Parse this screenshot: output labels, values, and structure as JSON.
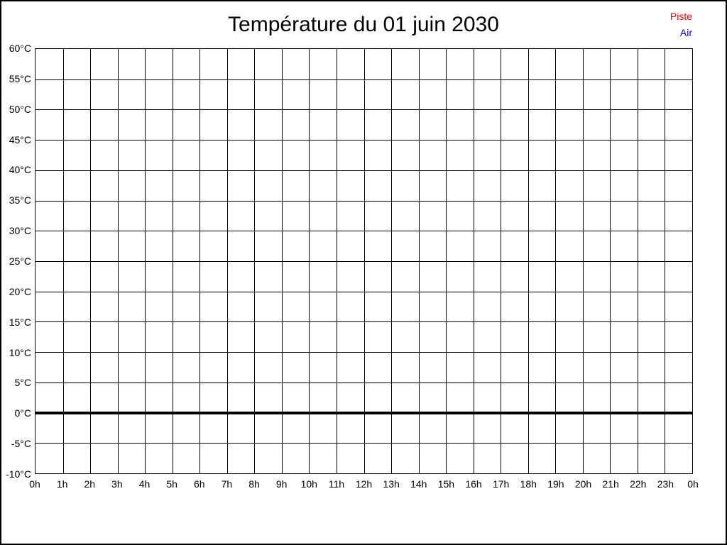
{
  "chart_data": {
    "type": "line",
    "title": "Température du 01 juin 2030",
    "xlabel": "",
    "ylabel": "",
    "x_tick_labels": [
      "0h",
      "1h",
      "2h",
      "3h",
      "4h",
      "5h",
      "6h",
      "7h",
      "8h",
      "9h",
      "10h",
      "11h",
      "12h",
      "13h",
      "14h",
      "15h",
      "16h",
      "17h",
      "18h",
      "19h",
      "20h",
      "21h",
      "22h",
      "23h",
      "0h"
    ],
    "y_tick_labels": [
      "60°C",
      "55°C",
      "50°C",
      "45°C",
      "40°C",
      "35°C",
      "30°C",
      "25°C",
      "20°C",
      "15°C",
      "10°C",
      "5°C",
      "0°C",
      "-5°C",
      "-10°C"
    ],
    "ylim": [
      -10,
      60
    ],
    "y_step": 5,
    "xlim_hours": [
      0,
      24
    ],
    "grid": true,
    "legend_position": "top-right",
    "series": [
      {
        "name": "Piste",
        "color": "#ff0000",
        "values": []
      },
      {
        "name": "Air",
        "color": "#0000ff",
        "values": []
      }
    ],
    "zero_line": {
      "y": 0,
      "color": "#000000",
      "thickness_px": 4
    }
  }
}
